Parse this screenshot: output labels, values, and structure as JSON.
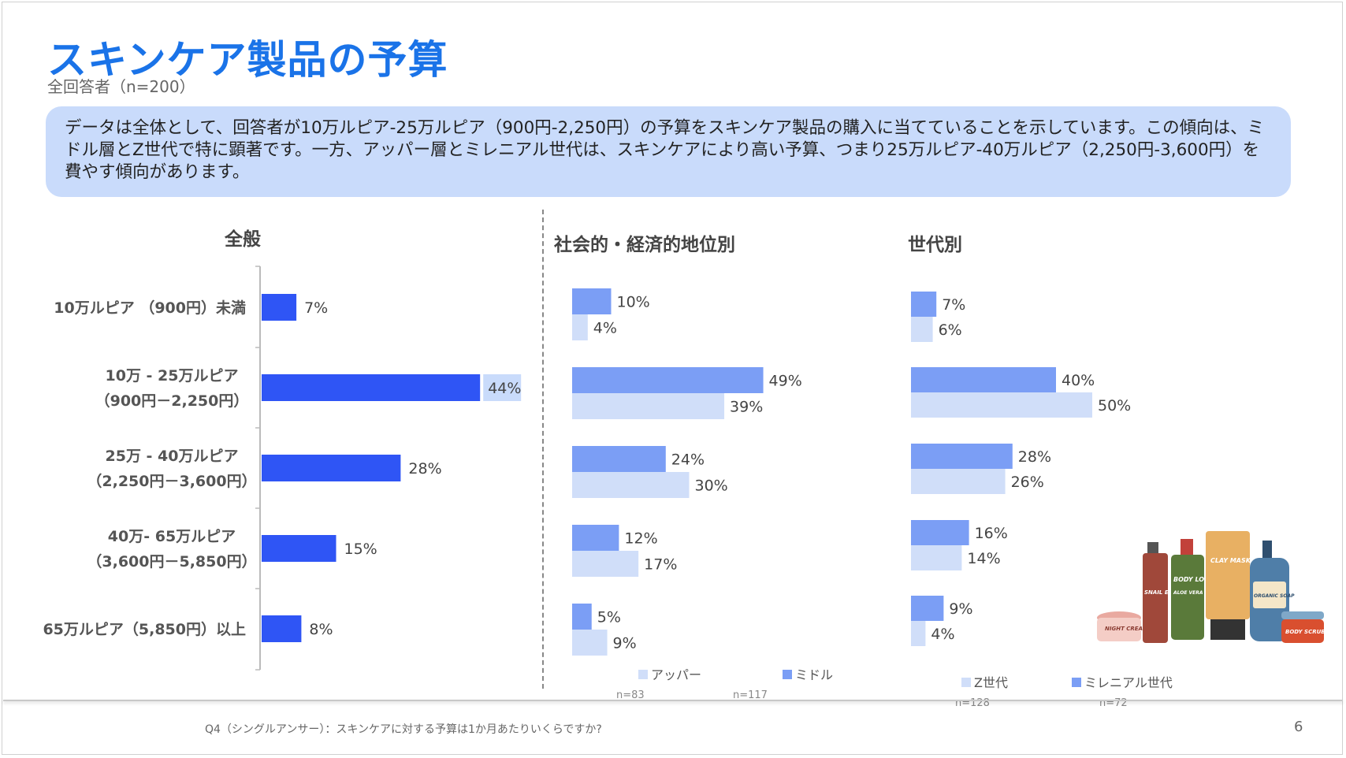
{
  "header": {
    "title": "スキンケア製品の予算",
    "subtitle": "全回答者（n=200）"
  },
  "summary": {
    "text": "データは全体として、回答者が10万ルピア-25万ルピア（900円-2,250円）の予算をスキンケア製品の購入に当てていることを示しています。この傾向は、ミドル層とZ世代で特に顕著です。一方、アッパー層とミレニアル世代は、スキンケアにより高い予算、つまり25万ルピア-40万ルピア（2,250円-3,600円）を費やす傾向があります。"
  },
  "colors": {
    "title": "#1a73e8",
    "summary_bg": "#c9dbfb",
    "overall_bar": "#2f55f5",
    "highlight_label_bg": "#c9dbfb",
    "series_dark": "#7b9ef5",
    "series_light": "#d0def9"
  },
  "chart_data": [
    {
      "type": "bar",
      "orientation": "horizontal",
      "title": "全般",
      "categories": [
        "10万ルピア （900円）未満",
        "10万 - 25万ルピア（900円－2,250円）",
        "25万 - 40万ルピア（2,250円－3,600円）",
        "40万- 65万ルピア（3,600円－5,850円）",
        "65万ルピア（5,850円）以上"
      ],
      "category_lines": [
        [
          "10万ルピア （900円）未満"
        ],
        [
          "10万 - 25万ルピア",
          "（900円－2,250円）"
        ],
        [
          "25万 - 40万ルピア",
          "（2,250円－3,600円）"
        ],
        [
          "40万- 65万ルピア",
          "（3,600円－5,850円）"
        ],
        [
          "65万ルピア（5,850円）以上"
        ]
      ],
      "values": [
        7,
        44,
        28,
        15,
        8
      ],
      "value_labels": [
        "7%",
        "44%",
        "28%",
        "15%",
        "8%"
      ],
      "highlight_index": 1,
      "xlim": [
        0,
        50
      ]
    },
    {
      "type": "bar",
      "orientation": "horizontal",
      "title": "社会的・経済的地位別",
      "categories": [
        "10万ルピア （900円）未満",
        "10万 - 25万ルピア（900円－2,250円）",
        "25万 - 40万ルピア（2,250円－3,600円）",
        "40万- 65万ルピア（3,600円－5,850円）",
        "65万ルピア（5,850円）以上"
      ],
      "series": [
        {
          "name": "ミドル",
          "n_label": "n=117",
          "values": [
            10,
            49,
            24,
            12,
            5
          ],
          "value_labels": [
            "10%",
            "49%",
            "24%",
            "12%",
            "5%"
          ]
        },
        {
          "name": "アッパー",
          "n_label": "n=83",
          "values": [
            4,
            39,
            30,
            17,
            9
          ],
          "value_labels": [
            "4%",
            "39%",
            "30%",
            "17%",
            "9%"
          ]
        }
      ],
      "legend_order": [
        1,
        0
      ],
      "xlim": [
        0,
        50
      ]
    },
    {
      "type": "bar",
      "orientation": "horizontal",
      "title": "世代別",
      "categories": [
        "10万ルピア （900円）未満",
        "10万 - 25万ルピア（900円－2,250円）",
        "25万 - 40万ルピア（2,250円－3,600円）",
        "40万- 65万ルピア（3,600円－5,850円）",
        "65万ルピア（5,850円）以上"
      ],
      "series": [
        {
          "name": "ミレニアル世代",
          "n_label": "n=72",
          "values": [
            7,
            40,
            28,
            16,
            9
          ],
          "value_labels": [
            "7%",
            "40%",
            "28%",
            "16%",
            "9%"
          ]
        },
        {
          "name": "Z世代",
          "n_label": "n=128",
          "values": [
            6,
            50,
            26,
            14,
            4
          ],
          "value_labels": [
            "6%",
            "50%",
            "26%",
            "14%",
            "4%"
          ]
        }
      ],
      "legend_order": [
        1,
        0
      ],
      "xlim": [
        0,
        50
      ]
    }
  ],
  "illustration": {
    "icon": "skincare-products-illustration",
    "labels": [
      "CLAY MASK",
      "BODY LOTION",
      "ALOE VERA",
      "SNAIL ESSENCE",
      "ORGANIC SOAP",
      "BODY SCRUB",
      "NIGHT CREAM"
    ]
  },
  "footer": {
    "question": "Q4（シングルアンサー）：スキンケアに対する予算は1か月あたりいくらですか?",
    "page": "6"
  }
}
